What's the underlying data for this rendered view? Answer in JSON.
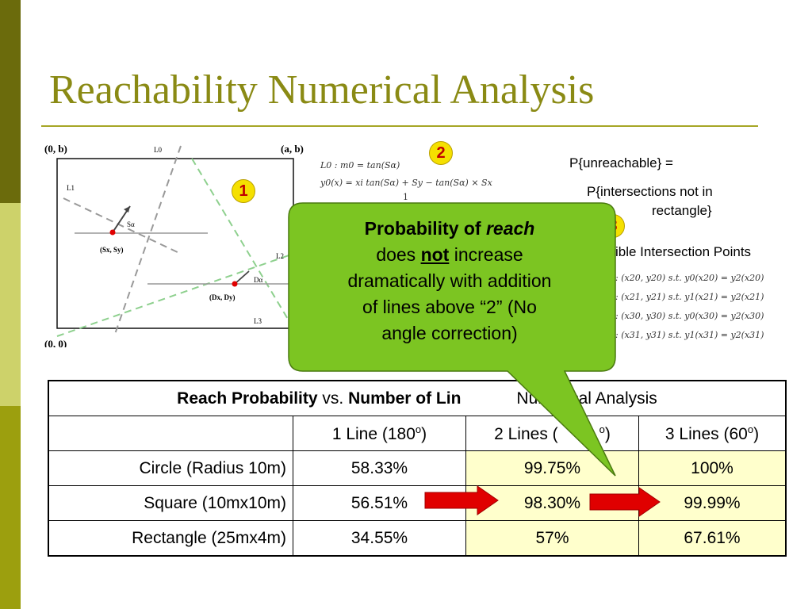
{
  "title": "Reachability Numerical Analysis",
  "badges": {
    "b1": "1",
    "b2": "2",
    "b3": "3"
  },
  "diagram": {
    "corner_tl": "(0, b)",
    "corner_tr": "(a, b)",
    "corner_bl": "(0, 0)",
    "l0": "L0",
    "l1": "L1",
    "l2": "L2",
    "l3": "L3",
    "s_alpha": "Sα",
    "d_alpha": "Dα",
    "s_point": "(Sx, Sy)",
    "d_point": "(Dx, Dy)"
  },
  "equations_top": {
    "line1": "L0 : m0 = tan(Sα)",
    "line2": "y0(x) = xi tan(Sα) + Sy − tan(Sα) × Sx",
    "line3": "1"
  },
  "right_text": {
    "line1": "P{unreachable} =",
    "line2": "P{intersections not in",
    "line3": "rectangle}",
    "possible": "ible Intersection Points"
  },
  "equations_right": [
    ": (x20, y20) s.t. y0(x20) = y2(x20)",
    ": (x21, y21) s.t. y1(x21) = y2(x21)",
    ": (x30, y30) s.t. y0(x30) = y2(x30)",
    ": (x31, y31) s.t. y1(x31) = y2(x31)"
  ],
  "callout": {
    "l1_pre": "Probability of ",
    "l1_em": "reach",
    "l2_pre": "does ",
    "l2_not": "not",
    "l2_post": " increase",
    "l3": "dramatically with addition",
    "l4": "of lines above “2” (No",
    "l5": "angle correction)"
  },
  "table": {
    "header_bold1": "Reach Probability",
    "header_vs": " vs. ",
    "header_bold2": "Number of Lin",
    "header_tail": "Numerical Analysis",
    "columns": [
      {
        "text": "1 Line (180",
        "sup": "o",
        "close": ")"
      },
      {
        "text": "2 Lines (",
        "sup": "o",
        "close": ")"
      },
      {
        "text": "3 Lines (60",
        "sup": "o",
        "close": ")"
      }
    ],
    "rows": [
      {
        "label": "Circle (Radius 10m)",
        "v1": "58.33%",
        "v2": "99.75%",
        "v3": "100%"
      },
      {
        "label": "Square (10mx10m)",
        "v1": "56.51%",
        "v2": "98.30%",
        "v3": "99.99%"
      },
      {
        "label": "Rectangle (25mx4m)",
        "v1": "34.55%",
        "v2": "57%",
        "v3": "67.61%"
      }
    ]
  },
  "colors": {
    "title": "#8a8a14",
    "highlight": "#ffffcc",
    "callout": "#7cc522",
    "arrow": "#e00000",
    "badge": "#f5e000"
  }
}
